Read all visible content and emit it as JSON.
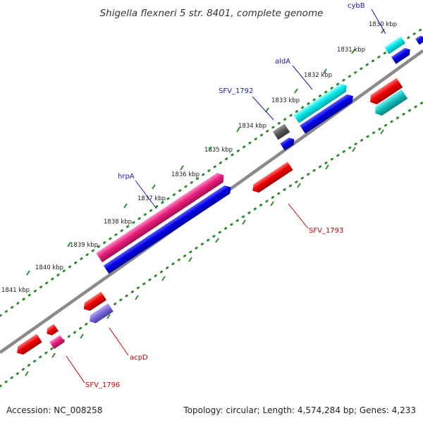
{
  "title": "Shigella flexneri 5 str. 8401, complete genome",
  "accession": "Accession: NC_008258",
  "summary": "Topology: circular; Length: 4,574,284 bp; Genes: 4,233",
  "ticks": [
    {
      "label": "1830 kbp"
    },
    {
      "label": "1831 kbp"
    },
    {
      "label": "1832 kbp"
    },
    {
      "label": "1833 kbp"
    },
    {
      "label": "1834 kbp"
    },
    {
      "label": "1835 kbp"
    },
    {
      "label": "1836 kbp"
    },
    {
      "label": "1837 kbp"
    },
    {
      "label": "1838 kbp"
    },
    {
      "label": "1839 kbp"
    },
    {
      "label": "1840 kbp"
    },
    {
      "label": "1841 kbp"
    }
  ],
  "gene_labels": {
    "cybB": "cybB",
    "aldA": "aldA",
    "SFV_1792": "SFV_1792",
    "hrpA": "hrpA",
    "SFV_1793": "SFV_1793",
    "acpD": "acpD",
    "SFV_1796": "SFV_1796"
  },
  "colors": {
    "forward_label": "#1a1aa8",
    "reverse_label": "#cc0000",
    "backbone": "#808080",
    "tick_dot": "#2e8b2e",
    "cds_blue": "#0000e0",
    "cds_cyan": "#00d8d8",
    "cds_pink": "#e0207a",
    "cds_red": "#e00000",
    "cds_teal": "#10b8b8",
    "cds_purple": "#7a6ad8",
    "cds_gray": "#555555"
  }
}
